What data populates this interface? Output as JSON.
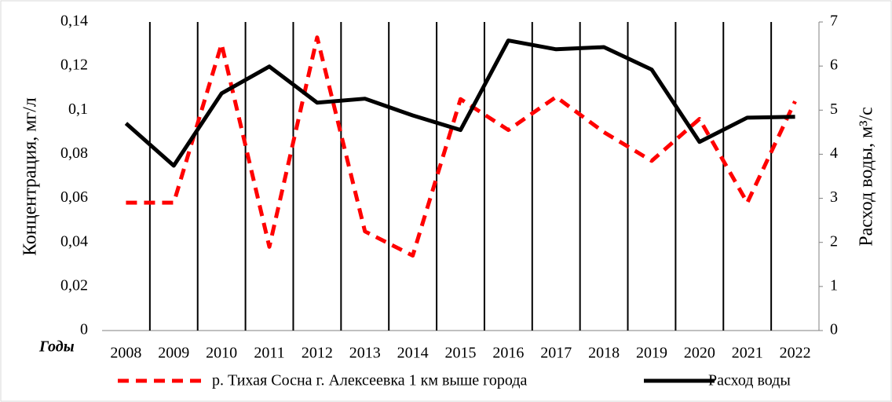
{
  "chart_data": {
    "type": "line",
    "categories_label": "Годы",
    "categories": [
      "2008",
      "2009",
      "2010",
      "2011",
      "2012",
      "2013",
      "2014",
      "2015",
      "2016",
      "2017",
      "2018",
      "2019",
      "2020",
      "2021",
      "2022"
    ],
    "ylabel": "Концентрация, мг/л",
    "y2label": "Расход воды, м³/с",
    "ylim": [
      0,
      0.14
    ],
    "yticks": [
      0,
      {
        "value": 0.02,
        "label": "0,02"
      },
      {
        "value": 0.04,
        "label": "0,04"
      },
      {
        "value": 0.06,
        "label": "0,06"
      },
      {
        "value": 0.08,
        "label": "0,08"
      },
      {
        "value": 0.1,
        "label": "0,1"
      },
      {
        "value": 0.12,
        "label": "0,12"
      },
      {
        "value": 0.14,
        "label": "0,14"
      }
    ],
    "y2lim": [
      0,
      7
    ],
    "y2ticks": [
      0,
      1,
      2,
      3,
      4,
      5,
      6,
      7
    ],
    "series": [
      {
        "name": "р. Тихая Сосна г. Алексеевка 1 км выше города",
        "color": "#ff0000",
        "dashed": true,
        "values": [
          0.058,
          0.058,
          0.13,
          0.038,
          0.133,
          0.045,
          0.034,
          0.105,
          0.091,
          0.106,
          0.09,
          0.077,
          0.096,
          0.058,
          0.104
        ]
      },
      {
        "name": "Расход воды",
        "color": "#000000",
        "axis": "y2",
        "values": [
          4.7,
          3.74,
          5.38,
          5.99,
          5.17,
          5.26,
          4.88,
          4.55,
          6.58,
          6.38,
          6.43,
          5.92,
          4.28,
          4.83,
          4.85
        ]
      }
    ]
  }
}
